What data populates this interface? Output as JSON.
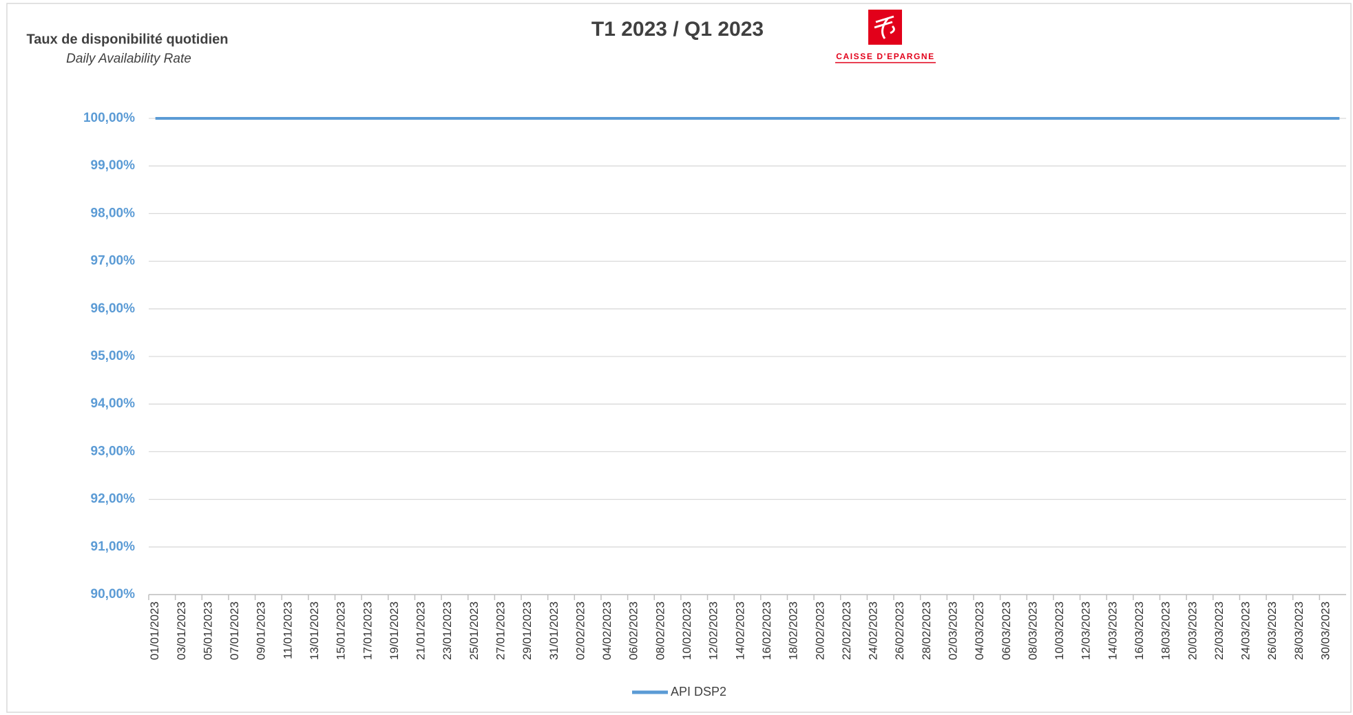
{
  "chart_data": {
    "type": "line",
    "title": "T1 2023 / Q1 2023",
    "y_label": "Taux de disponibilité quotidien",
    "y_label_sub": "Daily Availability Rate",
    "brand": "CAISSE D'EPARGNE",
    "categories": [
      "01/01/2023",
      null,
      "03/01/2023",
      null,
      "05/01/2023",
      null,
      "07/01/2023",
      null,
      "09/01/2023",
      null,
      "11/01/2023",
      null,
      "13/01/2023",
      null,
      "15/01/2023",
      null,
      "17/01/2023",
      null,
      "19/01/2023",
      null,
      "21/01/2023",
      null,
      "23/01/2023",
      null,
      "25/01/2023",
      null,
      "27/01/2023",
      null,
      "29/01/2023",
      null,
      "31/01/2023",
      null,
      "02/02/2023",
      null,
      "04/02/2023",
      null,
      "06/02/2023",
      null,
      "08/02/2023",
      null,
      "10/02/2023",
      null,
      "12/02/2023",
      null,
      "14/02/2023",
      null,
      "16/02/2023",
      null,
      "18/02/2023",
      null,
      "20/02/2023",
      null,
      "22/02/2023",
      null,
      "24/02/2023",
      null,
      "26/02/2023",
      null,
      "28/02/2023",
      null,
      "02/03/2023",
      null,
      "04/03/2023",
      null,
      "06/03/2023",
      null,
      "08/03/2023",
      null,
      "10/03/2023",
      null,
      "12/03/2023",
      null,
      "14/03/2023",
      null,
      "16/03/2023",
      null,
      "18/03/2023",
      null,
      "20/03/2023",
      null,
      "22/03/2023",
      null,
      "24/03/2023",
      null,
      "26/03/2023",
      null,
      "28/03/2023",
      null,
      "30/03/2023",
      null
    ],
    "series": [
      {
        "name": "API DSP2",
        "color": "#5b9bd5",
        "values": [
          100,
          100,
          100,
          100,
          100,
          100,
          100,
          100,
          100,
          100,
          100,
          100,
          100,
          100,
          100,
          100,
          100,
          100,
          100,
          100,
          100,
          100,
          100,
          100,
          100,
          100,
          100,
          100,
          100,
          100,
          100,
          100,
          100,
          100,
          100,
          100,
          100,
          100,
          100,
          100,
          100,
          100,
          100,
          100,
          100,
          100,
          100,
          100,
          100,
          100,
          100,
          100,
          100,
          100,
          100,
          100,
          100,
          100,
          100,
          100,
          100,
          100,
          100,
          100,
          100,
          100,
          100,
          100,
          100,
          100,
          100,
          100,
          100,
          100,
          100,
          100,
          100,
          100,
          100,
          100,
          100,
          100,
          100,
          100,
          100,
          100,
          100,
          100,
          100,
          100
        ]
      }
    ],
    "ylim": [
      90,
      100
    ],
    "yticks": [
      {
        "value": 90,
        "label": "90,00%"
      },
      {
        "value": 91,
        "label": "91,00%"
      },
      {
        "value": 92,
        "label": "92,00%"
      },
      {
        "value": 93,
        "label": "93,00%"
      },
      {
        "value": 94,
        "label": "94,00%"
      },
      {
        "value": 95,
        "label": "95,00%"
      },
      {
        "value": 96,
        "label": "96,00%"
      },
      {
        "value": 97,
        "label": "97,00%"
      },
      {
        "value": 98,
        "label": "98,00%"
      },
      {
        "value": 99,
        "label": "99,00%"
      },
      {
        "value": 100,
        "label": "100,00%"
      }
    ],
    "grid": true,
    "legend": "bottom"
  }
}
